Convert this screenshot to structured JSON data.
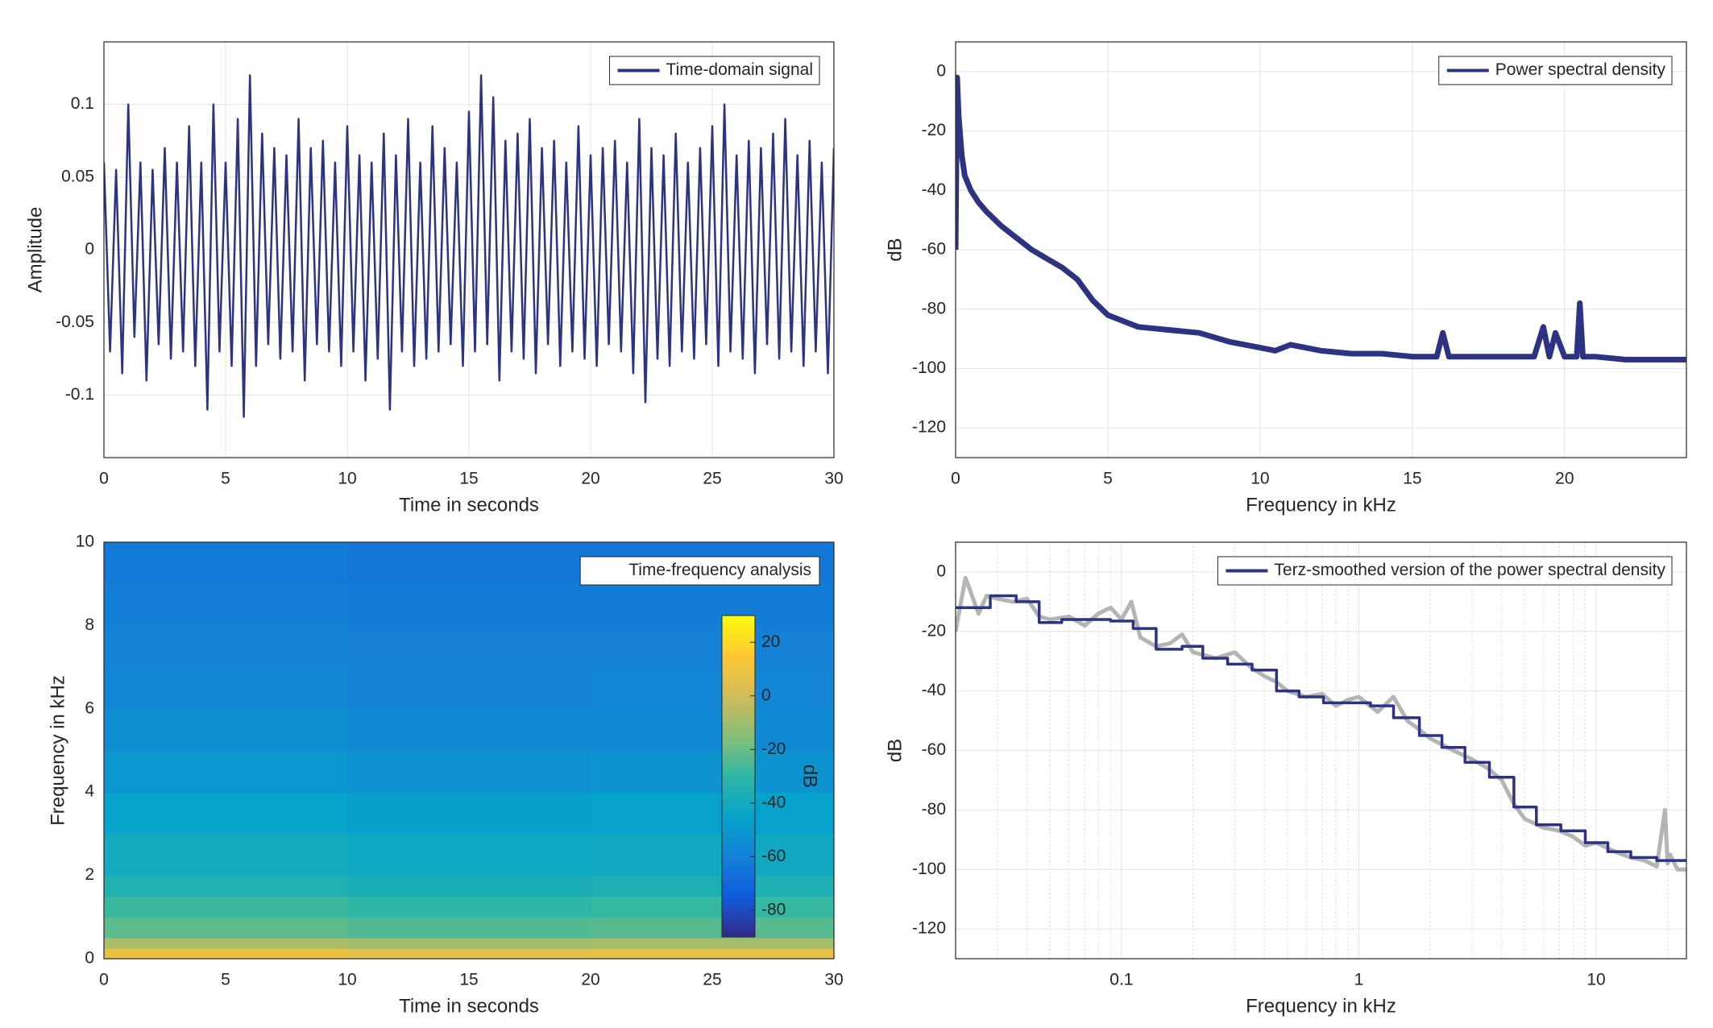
{
  "chart_data": [
    {
      "type": "line",
      "xlabel": "Time in seconds",
      "ylabel": "Amplitude",
      "xlim": [
        0,
        30
      ],
      "ylim": [
        -0.143,
        0.143
      ],
      "xticks": [
        0,
        5,
        10,
        15,
        20,
        25,
        30
      ],
      "yticks": [
        -0.1,
        -0.05,
        0,
        0.05,
        0.1
      ],
      "grid": true,
      "legend": "northeast",
      "series": [
        {
          "name": "Time-domain signal",
          "color": "#2c3382",
          "x": [
            0,
            0.25,
            0.5,
            0.75,
            1,
            1.25,
            1.5,
            1.75,
            2,
            2.25,
            2.5,
            2.75,
            3,
            3.25,
            3.5,
            3.75,
            4,
            4.25,
            4.5,
            4.75,
            5,
            5.25,
            5.5,
            5.75,
            6,
            6.25,
            6.5,
            6.75,
            7,
            7.25,
            7.5,
            7.75,
            8,
            8.25,
            8.5,
            8.75,
            9,
            9.25,
            9.5,
            9.75,
            10,
            10.25,
            10.5,
            10.75,
            11,
            11.25,
            11.5,
            11.75,
            12,
            12.25,
            12.5,
            12.75,
            13,
            13.25,
            13.5,
            13.75,
            14,
            14.25,
            14.5,
            14.75,
            15,
            15.25,
            15.5,
            15.75,
            16,
            16.25,
            16.5,
            16.75,
            17,
            17.25,
            17.5,
            17.75,
            18,
            18.25,
            18.5,
            18.75,
            19,
            19.25,
            19.5,
            19.75,
            20,
            20.25,
            20.5,
            20.75,
            21,
            21.25,
            21.5,
            21.75,
            22,
            22.25,
            22.5,
            22.75,
            23,
            23.25,
            23.5,
            23.75,
            24,
            24.25,
            24.5,
            24.75,
            25,
            25.25,
            25.5,
            25.75,
            26,
            26.25,
            26.5,
            26.75,
            27,
            27.25,
            27.5,
            27.75,
            28,
            28.25,
            28.5,
            28.75,
            29,
            29.25,
            29.5,
            29.75,
            30
          ],
          "values": [
            0.06,
            -0.07,
            0.055,
            -0.085,
            0.1,
            -0.06,
            0.06,
            -0.09,
            0.055,
            -0.065,
            0.07,
            -0.075,
            0.06,
            -0.07,
            0.085,
            -0.08,
            0.06,
            -0.11,
            0.1,
            -0.07,
            0.06,
            -0.08,
            0.09,
            -0.115,
            0.12,
            -0.08,
            0.08,
            -0.065,
            0.07,
            -0.075,
            0.065,
            -0.07,
            0.09,
            -0.09,
            0.07,
            -0.065,
            0.075,
            -0.07,
            0.06,
            -0.08,
            0.085,
            -0.07,
            0.065,
            -0.09,
            0.06,
            -0.075,
            0.08,
            -0.11,
            0.065,
            -0.07,
            0.09,
            -0.08,
            0.06,
            -0.075,
            0.085,
            -0.07,
            0.07,
            -0.065,
            0.06,
            -0.08,
            0.095,
            -0.07,
            0.12,
            -0.065,
            0.105,
            -0.09,
            0.075,
            -0.07,
            0.08,
            -0.075,
            0.09,
            -0.085,
            0.07,
            -0.065,
            0.075,
            -0.08,
            0.06,
            -0.07,
            0.085,
            -0.075,
            0.065,
            -0.08,
            0.07,
            -0.065,
            0.075,
            -0.07,
            0.06,
            -0.085,
            0.09,
            -0.105,
            0.07,
            -0.075,
            0.065,
            -0.08,
            0.08,
            -0.07,
            0.06,
            -0.075,
            0.07,
            -0.065,
            0.085,
            -0.08,
            0.1,
            -0.07,
            0.065,
            -0.075,
            0.075,
            -0.085,
            0.07,
            -0.065,
            0.08,
            -0.075,
            0.09,
            -0.07,
            0.065,
            -0.08,
            0.075,
            -0.07,
            0.06,
            -0.085,
            0.07
          ]
        }
      ]
    },
    {
      "type": "line",
      "xlabel": "Frequency in kHz",
      "ylabel": "dB",
      "xlim": [
        0,
        24
      ],
      "ylim": [
        -130,
        10
      ],
      "xticks": [
        0,
        5,
        10,
        15,
        20
      ],
      "yticks": [
        -120,
        -100,
        -80,
        -60,
        -40,
        -20,
        0
      ],
      "grid": true,
      "legend": "northeast",
      "series": [
        {
          "name": "Power spectral density",
          "color": "#2c3382",
          "x": [
            0,
            0.05,
            0.1,
            0.2,
            0.3,
            0.5,
            0.75,
            1,
            1.5,
            2,
            2.5,
            3,
            3.5,
            4,
            4.5,
            5,
            5.5,
            6,
            7,
            8,
            9,
            10,
            10.5,
            11,
            12,
            13,
            14,
            15,
            15.8,
            16,
            16.2,
            17,
            18,
            19,
            19.3,
            19.5,
            19.7,
            20,
            20.4,
            20.5,
            20.6,
            21,
            22,
            23,
            24
          ],
          "values": [
            -60,
            -2,
            -15,
            -28,
            -35,
            -40,
            -44,
            -47,
            -52,
            -56,
            -60,
            -63,
            -66,
            -70,
            -77,
            -82,
            -84,
            -86,
            -87,
            -88,
            -91,
            -93,
            -94,
            -92,
            -94,
            -95,
            -95,
            -96,
            -96,
            -88,
            -96,
            -96,
            -96,
            -96,
            -86,
            -96,
            -88,
            -96,
            -96,
            -78,
            -96,
            -96,
            -97,
            -97,
            -97
          ]
        }
      ]
    },
    {
      "type": "heatmap",
      "xlabel": "Time in seconds",
      "ylabel": "Frequency in kHz",
      "xlim": [
        0,
        30
      ],
      "ylim": [
        0,
        10
      ],
      "xticks": [
        0,
        5,
        10,
        15,
        20,
        25,
        30
      ],
      "yticks": [
        0,
        2,
        4,
        6,
        8,
        10
      ],
      "legend_label": "Time-frequency analysis",
      "legend": "northeast",
      "xbins": [
        0,
        10,
        20,
        30
      ],
      "ybins": [
        0,
        0.25,
        0.5,
        1,
        1.5,
        2,
        3,
        4,
        5,
        6,
        7,
        8,
        9,
        10
      ],
      "z": [
        [
          8,
          6,
          7
        ],
        [
          -8,
          -10,
          -9
        ],
        [
          -22,
          -24,
          -23
        ],
        [
          -28,
          -30,
          -29
        ],
        [
          -35,
          -37,
          -36
        ],
        [
          -40,
          -42,
          -41
        ],
        [
          -45,
          -47,
          -46
        ],
        [
          -51,
          -53,
          -52
        ],
        [
          -55,
          -56,
          -56
        ],
        [
          -57,
          -59,
          -58
        ],
        [
          -59,
          -60,
          -60
        ],
        [
          -61,
          -62,
          -62
        ],
        [
          -63,
          -64,
          -64
        ]
      ],
      "clim": [
        -90,
        30
      ],
      "cticks": [
        -80,
        -60,
        -40,
        -20,
        0,
        20
      ],
      "clabel": "dB",
      "colormap": [
        "#352a87",
        "#0f5cdd",
        "#1481d6",
        "#06a4ca",
        "#2eb7a4",
        "#87bf77",
        "#d1bb59",
        "#fec832",
        "#f9fb0e"
      ]
    },
    {
      "type": "line",
      "xscale": "log",
      "xlabel": "Frequency in kHz",
      "ylabel": "dB",
      "xlim": [
        0.02,
        24
      ],
      "ylim": [
        -130,
        10
      ],
      "xticks": [
        0.1,
        1,
        10
      ],
      "xminorticks": [
        0.02,
        0.03,
        0.04,
        0.05,
        0.06,
        0.07,
        0.08,
        0.09,
        0.2,
        0.3,
        0.4,
        0.5,
        0.6,
        0.7,
        0.8,
        0.9,
        2,
        3,
        4,
        5,
        6,
        7,
        8,
        9,
        20
      ],
      "yticks": [
        -120,
        -100,
        -80,
        -60,
        -40,
        -20,
        0
      ],
      "grid": true,
      "legend": "northeast",
      "series": [
        {
          "color": "#b4b4b4",
          "x": [
            0.02,
            0.022,
            0.025,
            0.027,
            0.03,
            0.035,
            0.04,
            0.045,
            0.05,
            0.06,
            0.07,
            0.08,
            0.09,
            0.1,
            0.11,
            0.12,
            0.14,
            0.16,
            0.18,
            0.2,
            0.25,
            0.3,
            0.35,
            0.4,
            0.45,
            0.5,
            0.6,
            0.7,
            0.8,
            0.9,
            1,
            1.2,
            1.4,
            1.6,
            1.8,
            2,
            2.5,
            3,
            3.5,
            4,
            4.5,
            5,
            6,
            7,
            8,
            9,
            10,
            12,
            14,
            16,
            18,
            19.5,
            20,
            20.5,
            22,
            24
          ],
          "values": [
            -20,
            -2,
            -14,
            -8,
            -9,
            -10,
            -9,
            -15,
            -16,
            -15,
            -18,
            -14,
            -12,
            -16,
            -10,
            -22,
            -25,
            -24,
            -21,
            -27,
            -29,
            -27,
            -32,
            -35,
            -37,
            -40,
            -42,
            -41,
            -45,
            -43,
            -42,
            -47,
            -42,
            -50,
            -53,
            -56,
            -60,
            -63,
            -66,
            -70,
            -78,
            -83,
            -86,
            -87,
            -89,
            -92,
            -91,
            -94,
            -96,
            -97,
            -99,
            -80,
            -98,
            -95,
            -100,
            -100
          ]
        },
        {
          "name": "Terz-smoothed version of the power spectral density",
          "color": "#2c3382",
          "x": [
            0.02,
            0.028,
            0.028,
            0.036,
            0.036,
            0.045,
            0.045,
            0.056,
            0.056,
            0.09,
            0.09,
            0.112,
            0.112,
            0.14,
            0.14,
            0.18,
            0.18,
            0.22,
            0.22,
            0.28,
            0.28,
            0.355,
            0.355,
            0.45,
            0.45,
            0.56,
            0.56,
            0.71,
            0.71,
            1.12,
            1.12,
            1.4,
            1.4,
            1.8,
            1.8,
            2.24,
            2.24,
            2.8,
            2.8,
            3.55,
            3.55,
            4.5,
            4.5,
            5.6,
            5.6,
            7.1,
            7.1,
            9,
            9,
            11.2,
            11.2,
            14,
            14,
            18,
            18,
            24
          ],
          "values": [
            -12,
            -12,
            -8,
            -8,
            -10,
            -10,
            -17,
            -17,
            -16,
            -16,
            -16.5,
            -16.5,
            -19,
            -19,
            -26,
            -26,
            -25,
            -25,
            -29,
            -29,
            -31,
            -31,
            -33,
            -33,
            -40,
            -40,
            -42,
            -42,
            -44,
            -44,
            -45,
            -45,
            -49,
            -49,
            -55,
            -55,
            -59,
            -59,
            -64,
            -64,
            -69,
            -69,
            -79,
            -79,
            -85,
            -85,
            -87,
            -87,
            -91,
            -91,
            -94,
            -94,
            -96,
            -96,
            -97,
            -97
          ]
        }
      ]
    }
  ]
}
